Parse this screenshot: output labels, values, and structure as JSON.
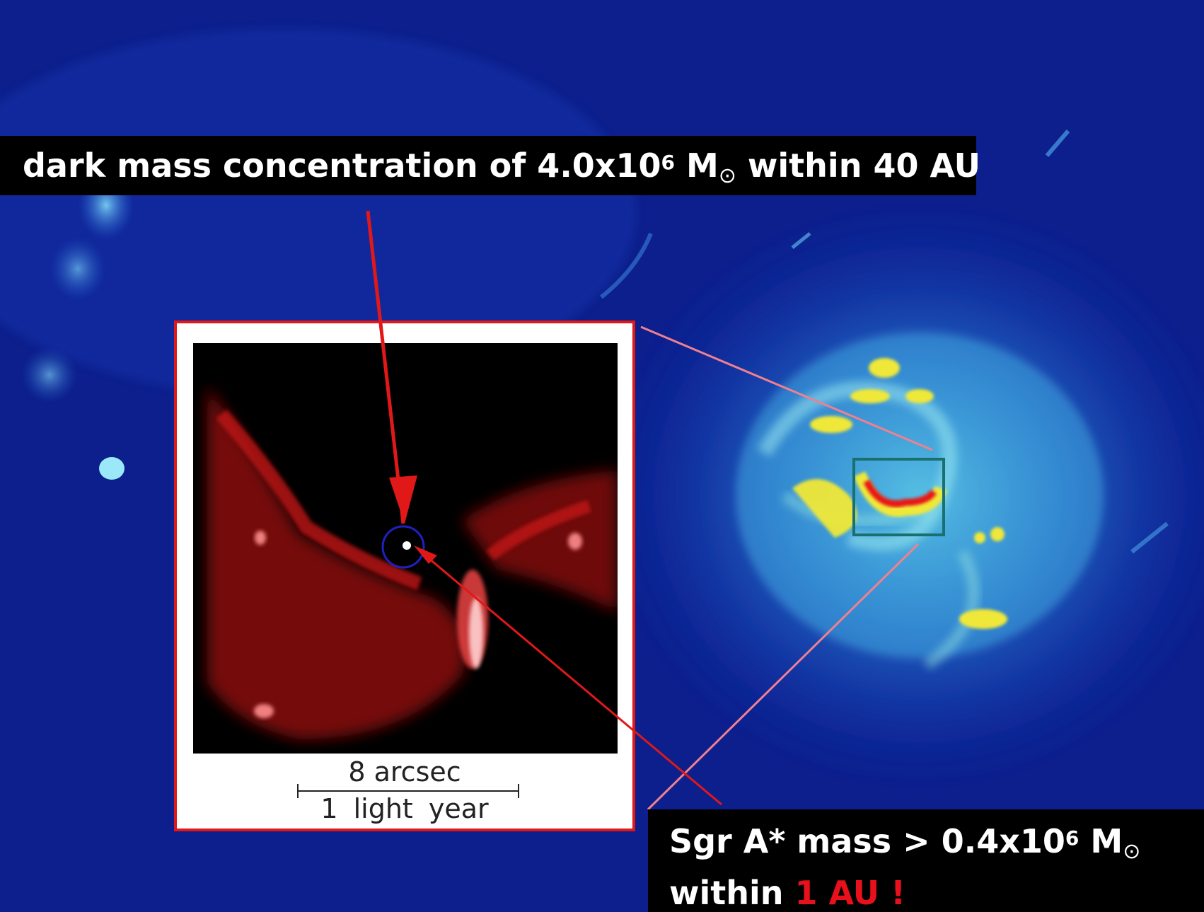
{
  "top_label": {
    "prefix": "dark mass concentration of 4.0x10",
    "exponent": "6",
    "unit": "M",
    "sun_symbol": "⊙",
    "suffix": "within 40 AU"
  },
  "bottom_label": {
    "line1_prefix": "Sgr A* mass > 0.4x10",
    "line1_exponent": "6",
    "line1_unit": "M",
    "sun_symbol": "⊙",
    "line2_prefix": "within ",
    "line2_highlight": "1 AU !"
  },
  "inset": {
    "scale_top": "8 arcsec",
    "scale_bottom": "1 light year"
  },
  "colors": {
    "background": "#0a1a7a",
    "highlight_red": "#e8101a",
    "arrow_red": "#e01818",
    "connector_pink": "#f08090",
    "box_teal": "#1a7070"
  }
}
